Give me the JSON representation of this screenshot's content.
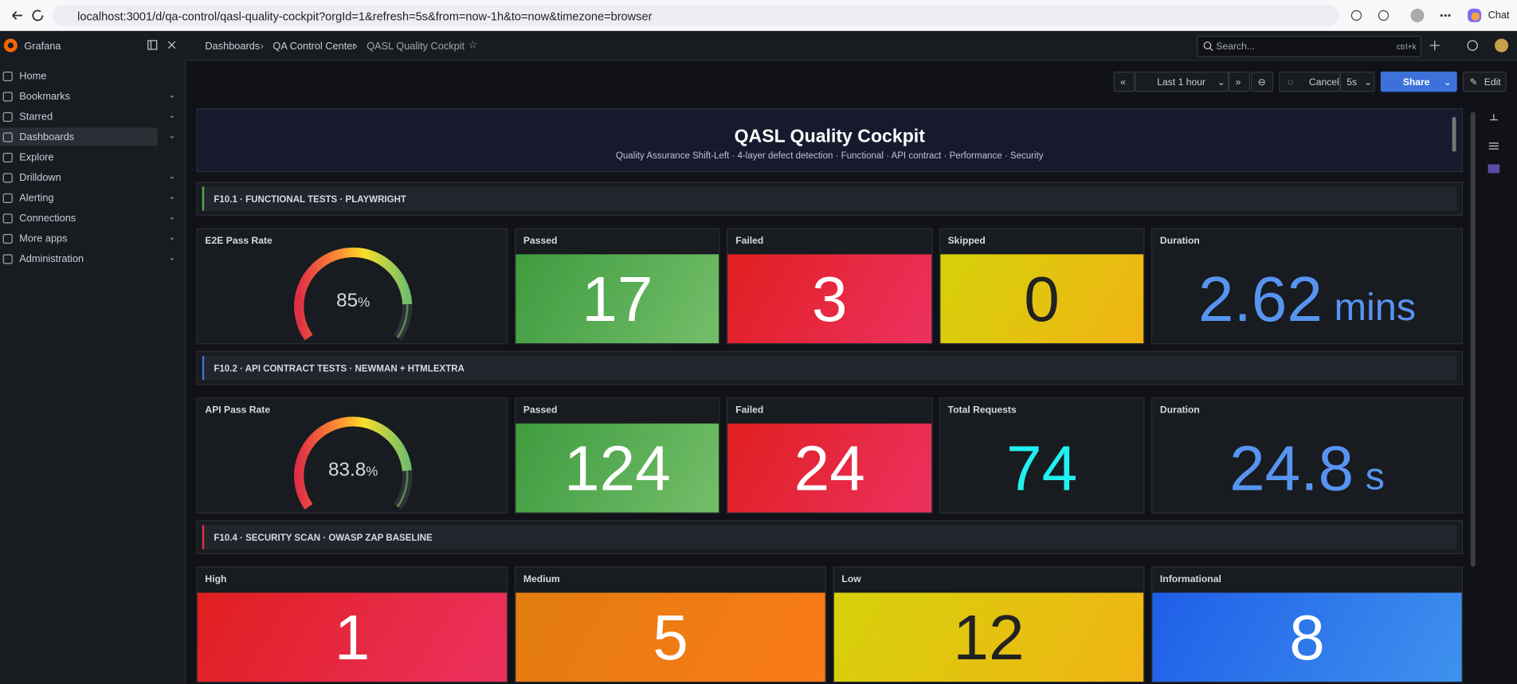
{
  "browser": {
    "url": "localhost:3001/d/qa-control/qasl-quality-cockpit?orgId=1&refresh=5s&from=now-1h&to=now&timezone=browser",
    "chat": "Chat"
  },
  "sidebar": {
    "brand": "Grafana",
    "items": [
      {
        "label": "Home",
        "expandable": false
      },
      {
        "label": "Bookmarks",
        "expandable": true
      },
      {
        "label": "Starred",
        "expandable": true
      },
      {
        "label": "Dashboards",
        "expandable": true,
        "active": true
      },
      {
        "label": "Explore",
        "expandable": false
      },
      {
        "label": "Drilldown",
        "expandable": true
      },
      {
        "label": "Alerting",
        "expandable": true
      },
      {
        "label": "Connections",
        "expandable": true
      },
      {
        "label": "More apps",
        "expandable": true
      },
      {
        "label": "Administration",
        "expandable": true
      }
    ]
  },
  "topbar": {
    "breadcrumbs": [
      "Dashboards",
      "QA Control Center",
      "QASL Quality Cockpit"
    ],
    "search": "Search...",
    "shortcut": "ctrl+k"
  },
  "toolbar": {
    "time_range": "Last 1 hour",
    "cancel": "Cancel",
    "refresh": "5s",
    "share": "Share",
    "edit": "Edit"
  },
  "header": {
    "title": "QASL Quality Cockpit",
    "subtitle": "Quality Assurance Shift-Left · 4-layer defect detection · Functional · API contract · Performance · Security"
  },
  "rows": [
    {
      "title": "F10.1 · FUNCTIONAL TESTS · PLAYWRIGHT",
      "accent": "#56a64b",
      "panels": [
        {
          "title": "E2E Pass Rate",
          "type": "gauge",
          "value": 85,
          "unit": "%",
          "range": [
            0,
            100
          ]
        },
        {
          "title": "Passed",
          "type": "stat",
          "value": 17,
          "color": "green",
          "mode": "background"
        },
        {
          "title": "Failed",
          "type": "stat",
          "value": 3,
          "color": "red",
          "mode": "background"
        },
        {
          "title": "Skipped",
          "type": "stat",
          "value": 0,
          "color": "yellow",
          "mode": "background"
        },
        {
          "title": "Duration",
          "type": "stat",
          "value": 2.62,
          "unit": "mins",
          "color": "blue",
          "mode": "text"
        }
      ]
    },
    {
      "title": "F10.2 · API CONTRACT TESTS · NEWMAN + HTMLEXTRA",
      "accent": "#3d71d9",
      "panels": [
        {
          "title": "API Pass Rate",
          "type": "gauge",
          "value": 83.8,
          "unit": "%",
          "range": [
            0,
            100
          ]
        },
        {
          "title": "Passed",
          "type": "stat",
          "value": 124,
          "color": "green",
          "mode": "background"
        },
        {
          "title": "Failed",
          "type": "stat",
          "value": 24,
          "color": "red",
          "mode": "background"
        },
        {
          "title": "Total Requests",
          "type": "stat",
          "value": 74,
          "color": "cyan",
          "mode": "text"
        },
        {
          "title": "Duration",
          "type": "stat",
          "value": 24.8,
          "unit": "s",
          "color": "blue",
          "mode": "text"
        }
      ]
    },
    {
      "title": "F10.4 · SECURITY SCAN · OWASP ZAP BASELINE",
      "accent": "#e02f44",
      "panels": [
        {
          "title": "High",
          "type": "stat",
          "value": 1,
          "color": "red",
          "mode": "background"
        },
        {
          "title": "Medium",
          "type": "stat",
          "value": 5,
          "color": "orange",
          "mode": "background"
        },
        {
          "title": "Low",
          "type": "stat",
          "value": 12,
          "color": "yellow",
          "mode": "background"
        },
        {
          "title": "Informational",
          "type": "stat",
          "value": 8,
          "color": "blue",
          "mode": "background"
        }
      ]
    }
  ]
}
